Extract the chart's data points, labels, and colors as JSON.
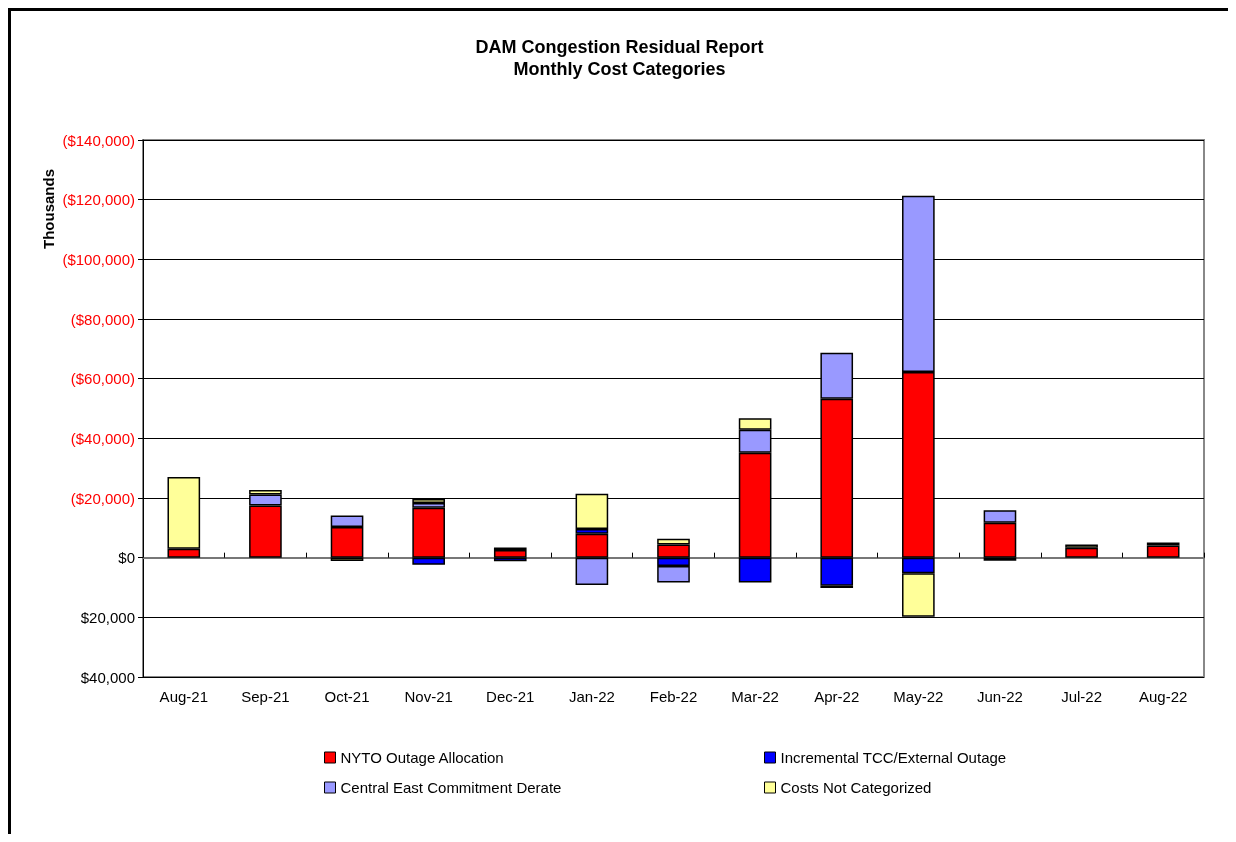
{
  "chart_data": {
    "type": "bar",
    "title": "DAM Congestion Residual Report",
    "subtitle": "Monthly Cost Categories",
    "ylabel": "Thousands",
    "stacked": true,
    "grid": "y",
    "legend": "bottom",
    "categories": [
      "Aug-21",
      "Sep-21",
      "Oct-21",
      "Nov-21",
      "Dec-21",
      "Jan-22",
      "Feb-22",
      "Mar-22",
      "Apr-22",
      "May-22",
      "Jun-22",
      "Jul-22",
      "Aug-22"
    ],
    "ylim": [
      40000,
      -140000
    ],
    "yticks": [
      {
        "value": -140000,
        "label": "($140,000)"
      },
      {
        "value": -120000,
        "label": "($120,000)"
      },
      {
        "value": -100000,
        "label": "($100,000)"
      },
      {
        "value": -80000,
        "label": "($80,000)"
      },
      {
        "value": -60000,
        "label": "($60,000)"
      },
      {
        "value": -40000,
        "label": "($40,000)"
      },
      {
        "value": -20000,
        "label": "($20,000)"
      },
      {
        "value": 0,
        "label": "$0"
      },
      {
        "value": 20000,
        "label": "$20,000"
      },
      {
        "value": 40000,
        "label": "$40,000"
      }
    ],
    "series": [
      {
        "name": "NYTO Outage Allocation",
        "color": "#ff0000",
        "values": [
          -3000,
          -17500,
          -10300,
          -16700,
          -2600,
          -8000,
          -4400,
          -35200,
          -53300,
          -62200,
          -11700,
          -3300,
          -4100
        ]
      },
      {
        "name": "Incremental TCC/External Outage",
        "color": "#0000ff",
        "values": [
          null,
          null,
          null,
          2400,
          1200,
          -1600,
          2800,
          8300,
          9400,
          5200,
          null,
          null,
          -1000
        ]
      },
      {
        "name": "Central East Commitment Derate",
        "color": "#9999ff",
        "values": [
          null,
          -3700,
          -3800,
          -1600,
          null,
          9200,
          5500,
          -7700,
          -15400,
          -59100,
          -4200,
          null,
          null
        ]
      },
      {
        "name": "Costs Not Categorized",
        "color": "#ffff99",
        "values": [
          -24000,
          -1500,
          1100,
          -1400,
          -800,
          -11800,
          -1900,
          -3800,
          800,
          14600,
          1000,
          -1100,
          null
        ]
      }
    ]
  }
}
